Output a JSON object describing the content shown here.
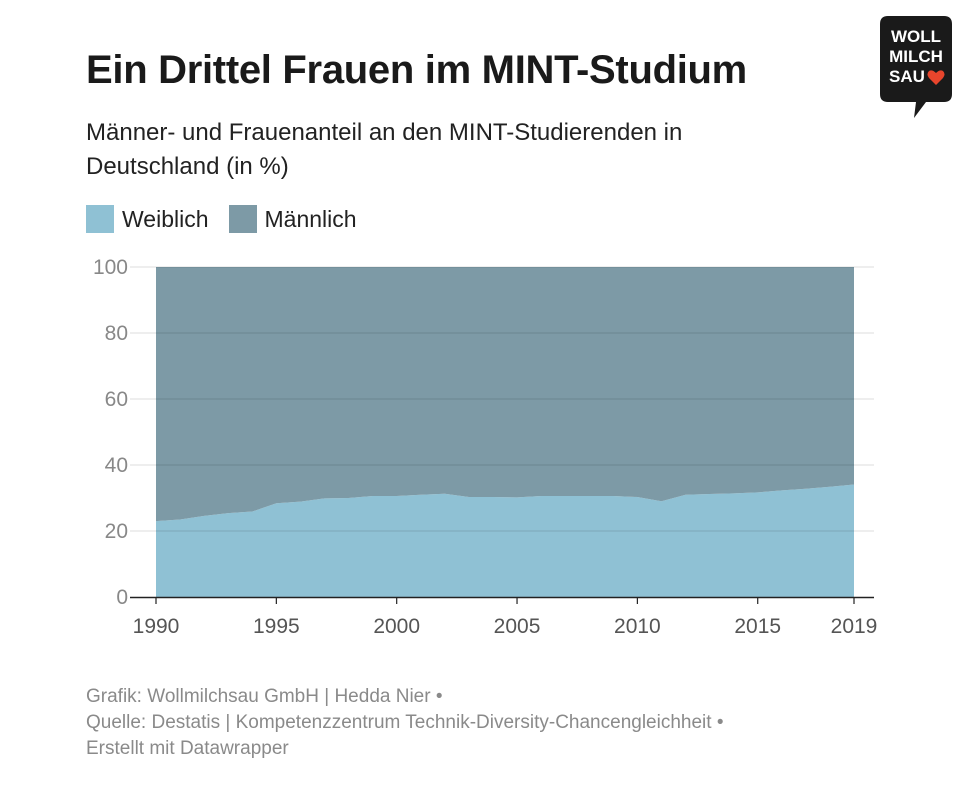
{
  "title": "Ein Drittel Frauen im MINT-Studium",
  "subtitle": "Männer- und Frauenanteil an den MINT-Studierenden in Deutschland (in %)",
  "logo": {
    "lines": [
      "WOLL",
      "MILCH",
      "SAU"
    ],
    "icon": "heart-icon",
    "bg_color": "#1a1a1a",
    "heart_color": "#e8452c"
  },
  "footer": {
    "line1": "Grafik: Wollmilchsau GmbH | Hedda Nier •",
    "line2": "Quelle: Destatis | Kompetenzzentrum Technik-Diversity-Chancengleichheit •",
    "line3": "Erstellt mit Datawrapper"
  },
  "chart_data": {
    "type": "area",
    "stacked": true,
    "x": [
      1990,
      1991,
      1992,
      1993,
      1994,
      1995,
      1996,
      1997,
      1998,
      1999,
      2000,
      2001,
      2002,
      2003,
      2004,
      2005,
      2006,
      2007,
      2008,
      2009,
      2010,
      2011,
      2012,
      2013,
      2014,
      2015,
      2016,
      2017,
      2018,
      2019
    ],
    "series": [
      {
        "name": "Weiblich",
        "color": "#8fc1d4",
        "values": [
          23.0,
          23.5,
          24.6,
          25.4,
          25.9,
          28.4,
          28.9,
          29.9,
          30.0,
          30.6,
          30.6,
          31.0,
          31.3,
          30.3,
          30.3,
          30.2,
          30.6,
          30.6,
          30.6,
          30.6,
          30.3,
          29.0,
          31.0,
          31.2,
          31.4,
          31.7,
          32.3,
          32.8,
          33.4,
          34.1
        ]
      },
      {
        "name": "Männlich",
        "color": "#7d9aa6",
        "values": [
          77.0,
          76.5,
          75.4,
          74.6,
          74.1,
          71.6,
          71.1,
          70.1,
          70.0,
          69.4,
          69.4,
          69.0,
          68.7,
          69.7,
          69.7,
          69.8,
          69.4,
          69.4,
          69.4,
          69.4,
          69.7,
          71.0,
          69.0,
          68.8,
          68.6,
          68.3,
          67.7,
          67.2,
          66.6,
          65.9
        ]
      }
    ],
    "ylim": [
      0,
      100
    ],
    "yticks": [
      "0",
      "20",
      "40",
      "60",
      "80",
      "100"
    ],
    "xticks": [
      "1990",
      "1995",
      "2000",
      "2005",
      "2010",
      "2015",
      "2019"
    ],
    "grid": true,
    "legend_position": "top-left"
  }
}
